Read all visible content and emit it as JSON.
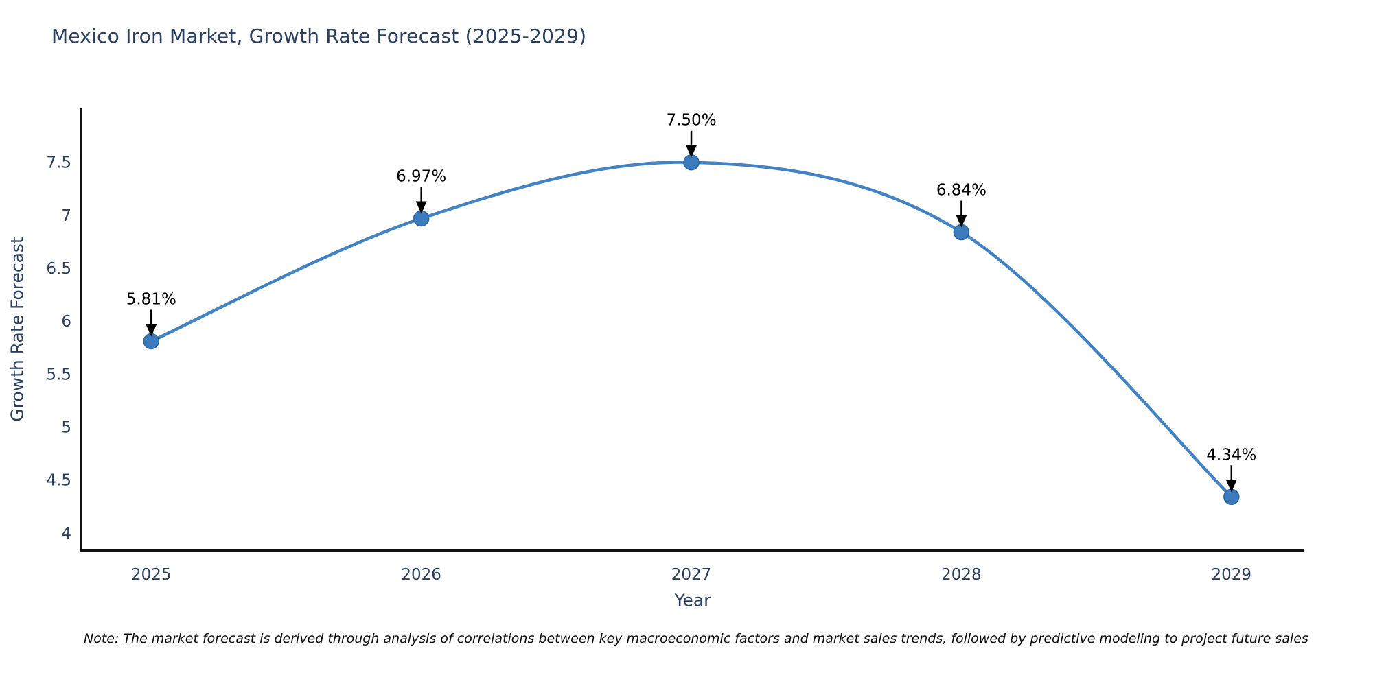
{
  "page": {
    "title": "Mexico Iron Market, Growth Rate Forecast (2025-2029)",
    "note": "Note: The market forecast is derived through analysis of correlations between key macroeconomic factors and market sales trends, followed by predictive modeling to project future sales"
  },
  "chart_data": {
    "type": "line",
    "title": "Mexico Iron Market, Growth Rate Forecast (2025-2029)",
    "xlabel": "Year",
    "ylabel": "Growth Rate Forecast",
    "x": [
      2025,
      2026,
      2027,
      2028,
      2029
    ],
    "series": [
      {
        "name": "Growth Rate Forecast",
        "values": [
          5.81,
          6.97,
          7.5,
          6.84,
          4.34
        ]
      }
    ],
    "point_labels": [
      "5.81%",
      "6.97%",
      "7.50%",
      "6.84%",
      "4.34%"
    ],
    "xlim": [
      2024.74,
      2029.27
    ],
    "ylim": [
      3.83,
      8.01
    ],
    "yticks": [
      4,
      4.5,
      5,
      5.5,
      6,
      6.5,
      7,
      7.5
    ],
    "grid": false,
    "legend_position": "none",
    "line_shape": "spline",
    "colors": {
      "line": "#4383c1",
      "marker": "#3a7abd",
      "marker_edge": "#2d6499",
      "axis_line": "#111111",
      "tick_label": "#2a3f5f",
      "annotation": "#000000"
    }
  }
}
